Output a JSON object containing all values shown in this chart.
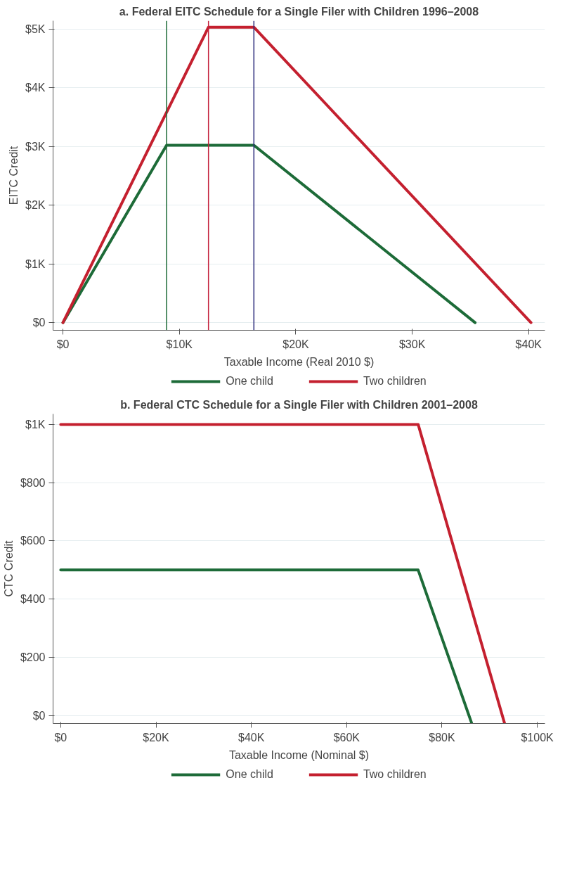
{
  "chart_data": [
    {
      "type": "line",
      "title": "a. Federal EITC Schedule for a Single Filer with Children 1996–2008",
      "xlabel": "Taxable Income (Real 2010 $)",
      "ylabel": "EITC Credit",
      "series": [
        {
          "name": "One child",
          "color": "#1d6b38",
          "x": [
            0,
            8900,
            16400,
            35400
          ],
          "values": [
            0,
            3020,
            3020,
            0
          ]
        },
        {
          "name": "Two children",
          "color": "#c4202f",
          "x": [
            0,
            12500,
            16400,
            40200
          ],
          "values": [
            0,
            5030,
            5030,
            0
          ]
        }
      ],
      "xlim": [
        -850,
        41400
      ],
      "ylim": [
        -130,
        5140
      ],
      "xticks": [
        {
          "value": 0,
          "label": "$0"
        },
        {
          "value": 10000,
          "label": "$10K"
        },
        {
          "value": 20000,
          "label": "$20K"
        },
        {
          "value": 30000,
          "label": "$30K"
        },
        {
          "value": 40000,
          "label": "$40K"
        }
      ],
      "yticks": [
        {
          "value": 0,
          "label": "$0"
        },
        {
          "value": 1000,
          "label": "$1K"
        },
        {
          "value": 2000,
          "label": "$2K"
        },
        {
          "value": 3000,
          "label": "$3K"
        },
        {
          "value": 4000,
          "label": "$4K"
        },
        {
          "value": 5000,
          "label": "$5K"
        }
      ],
      "ref_lines": [
        {
          "axis": "x",
          "value": 8900,
          "color": "#1d6b38"
        },
        {
          "axis": "x",
          "value": 12500,
          "color": "#c4203c"
        },
        {
          "axis": "x",
          "value": 16400,
          "color": "#2c2c7c"
        }
      ],
      "grid": "y",
      "legend": "bottom",
      "marker": "none",
      "line_style": "solid"
    },
    {
      "type": "line",
      "title": "b. Federal CTC Schedule for a Single Filer with Children 2001–2008",
      "xlabel": "Taxable Income (Nominal $)",
      "ylabel": "CTC Credit",
      "series": [
        {
          "name": "One child",
          "color": "#1d6b38",
          "x": [
            0,
            75000,
            86200
          ],
          "values": [
            500,
            500,
            -25
          ]
        },
        {
          "name": "Two children",
          "color": "#c4202f",
          "x": [
            0,
            75000,
            93100
          ],
          "values": [
            1000,
            1000,
            -25
          ]
        }
      ],
      "xlim": [
        -1600,
        101600
      ],
      "ylim": [
        -27,
        1036
      ],
      "xticks": [
        {
          "value": 0,
          "label": "$0"
        },
        {
          "value": 20000,
          "label": "$20K"
        },
        {
          "value": 40000,
          "label": "$40K"
        },
        {
          "value": 60000,
          "label": "$60K"
        },
        {
          "value": 80000,
          "label": "$80K"
        },
        {
          "value": 100000,
          "label": "$100K"
        }
      ],
      "yticks": [
        {
          "value": 0,
          "label": "$0"
        },
        {
          "value": 200,
          "label": "$200"
        },
        {
          "value": 400,
          "label": "$400"
        },
        {
          "value": 600,
          "label": "$600"
        },
        {
          "value": 800,
          "label": "$800"
        },
        {
          "value": 1000,
          "label": "$1K"
        }
      ],
      "grid": "y",
      "legend": "bottom",
      "marker": "none",
      "line_style": "solid"
    }
  ]
}
